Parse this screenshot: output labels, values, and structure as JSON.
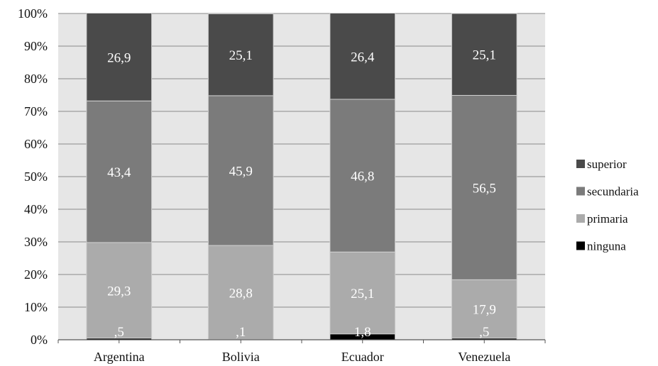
{
  "chart_data": {
    "type": "bar",
    "stacked": true,
    "percent": true,
    "categories": [
      "Argentina",
      "Bolivia",
      "Ecuador",
      "Venezuela"
    ],
    "series": [
      {
        "name": "ninguna",
        "color": "#000000",
        "values": [
          0.5,
          0.1,
          1.8,
          0.5
        ],
        "labels": [
          ",5",
          ",1",
          "1,8",
          ",5"
        ]
      },
      {
        "name": "primaria",
        "color": "#ababab",
        "values": [
          29.3,
          28.8,
          25.1,
          17.9
        ],
        "labels": [
          "29,3",
          "28,8",
          "25,1",
          "17,9"
        ]
      },
      {
        "name": "secundaria",
        "color": "#7b7b7b",
        "values": [
          43.4,
          45.9,
          46.8,
          56.5
        ],
        "labels": [
          "43,4",
          "45,9",
          "46,8",
          "56,5"
        ]
      },
      {
        "name": "superior",
        "color": "#4a4a4a",
        "values": [
          26.9,
          25.1,
          26.4,
          25.1
        ],
        "labels": [
          "26,9",
          "25,1",
          "26,4",
          "25,1"
        ]
      }
    ],
    "ylim": [
      0,
      100
    ],
    "yticks": [
      "0%",
      "10%",
      "20%",
      "30%",
      "40%",
      "50%",
      "60%",
      "70%",
      "80%",
      "90%",
      "100%"
    ],
    "grid": true,
    "legend_position": "right",
    "legend_order": [
      "superior",
      "secundaria",
      "primaria",
      "ninguna"
    ],
    "plot_background": "#e6e6e6"
  }
}
